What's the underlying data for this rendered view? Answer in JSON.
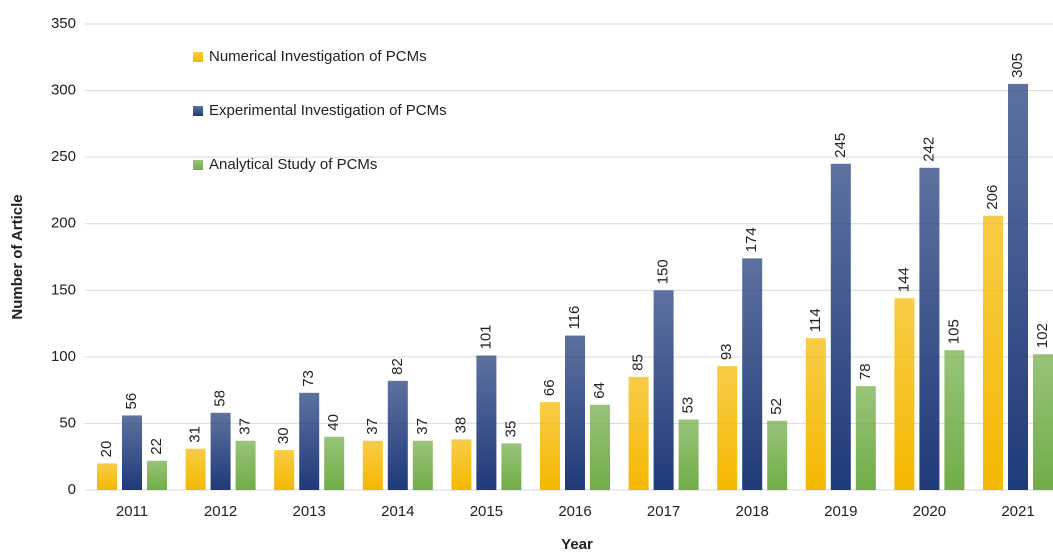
{
  "chart_data": {
    "type": "bar",
    "x_label": "Year",
    "y_label": "Number of Article",
    "categories": [
      "2011",
      "2012",
      "2013",
      "2014",
      "2015",
      "2016",
      "2017",
      "2018",
      "2019",
      "2020",
      "2021"
    ],
    "series": [
      {
        "name": "Numerical Investigation of PCMs",
        "color": "#f5b800",
        "values": [
          20,
          31,
          30,
          37,
          38,
          66,
          85,
          93,
          114,
          144,
          206
        ]
      },
      {
        "name": "Experimental Investigation of PCMs",
        "color": "#1f3a7a",
        "values": [
          56,
          58,
          73,
          82,
          101,
          116,
          150,
          174,
          245,
          242,
          305
        ]
      },
      {
        "name": "Analytical Study of PCMs",
        "color": "#70ad47",
        "values": [
          22,
          37,
          40,
          37,
          35,
          64,
          53,
          52,
          78,
          105,
          102
        ]
      }
    ],
    "ylim": [
      0,
      350
    ],
    "yticks": [
      0,
      50,
      100,
      150,
      200,
      250,
      300,
      350
    ],
    "grid": true,
    "legend": "upper left"
  }
}
